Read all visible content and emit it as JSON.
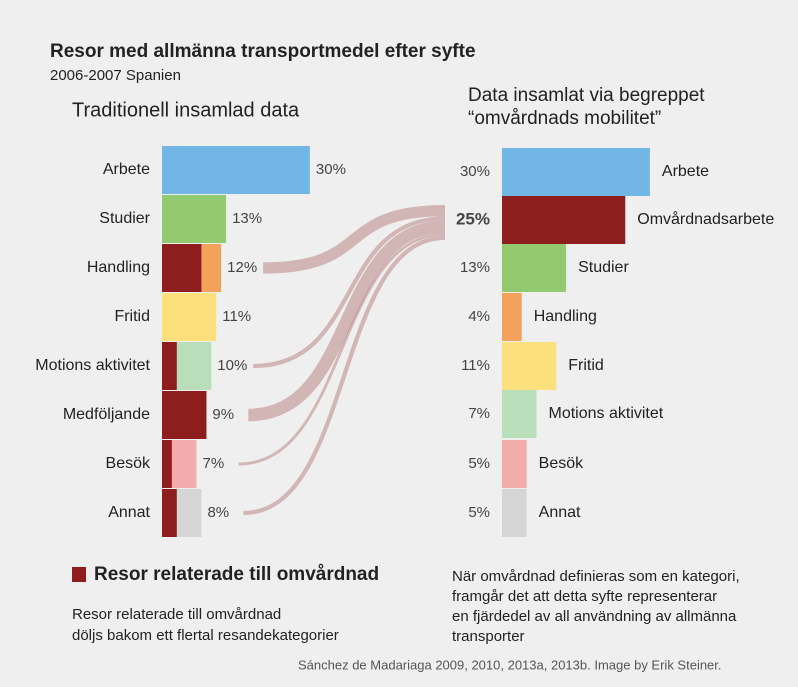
{
  "title": "Resor med allmänna transportmedel efter syfte",
  "subtitle": "2006-2007 Spanien",
  "chart_data": [
    {
      "type": "bar",
      "orientation": "horizontal",
      "title": "Traditionell insamlad data",
      "categories": [
        "Arbete",
        "Studier",
        "Handling",
        "Fritid",
        "Motions aktivitet",
        "Medföljande",
        "Besök",
        "Annat"
      ],
      "values": [
        30,
        13,
        12,
        11,
        10,
        9,
        7,
        8
      ],
      "value_labels": [
        "30%",
        "13%",
        "12%",
        "11%",
        "10%",
        "9%",
        "7%",
        "8%"
      ],
      "colors": [
        "#72b6e6",
        "#93c96f",
        "#f3a25c",
        "#fbe07c",
        "#b9dfba",
        "#8e1e1e",
        "#f2acab",
        "#d5d5d5"
      ],
      "overlay": {
        "name": "Resor relaterade till omvårdnad",
        "color": "#8e1e1e",
        "values": [
          0,
          0,
          8,
          0,
          3,
          9,
          2,
          3
        ]
      }
    },
    {
      "type": "bar",
      "orientation": "horizontal",
      "title": [
        "Data insamlat via begreppet",
        "“omvårdnads mobilitet”"
      ],
      "categories": [
        "Arbete",
        "Omvårdnadsarbete",
        "Studier",
        "Handling",
        "Fritid",
        "Motions aktivitet",
        "Besök",
        "Annat"
      ],
      "values": [
        30,
        25,
        13,
        4,
        11,
        7,
        5,
        5
      ],
      "value_labels": [
        "30%",
        "25%",
        "13%",
        "4%",
        "11%",
        "7%",
        "5%",
        "5%"
      ],
      "colors": [
        "#72b6e6",
        "#8e1e1e",
        "#93c96f",
        "#f3a25c",
        "#fbe07c",
        "#b9dfba",
        "#f2acab",
        "#d5d5d5"
      ]
    }
  ],
  "notes": {
    "left": [
      "Resor relaterade till omvårdnad",
      "döljs bakom ett flertal resandekategorier"
    ],
    "right": [
      "När omvårdnad definieras som en kategori,",
      "framgår det att detta syfte representerar",
      "en fjärdedel av all användning av allmänna",
      "transporter"
    ]
  },
  "source": "Sánchez de Madariaga 2009, 2010, 2013a, 2013b. Image by Erik Steiner."
}
